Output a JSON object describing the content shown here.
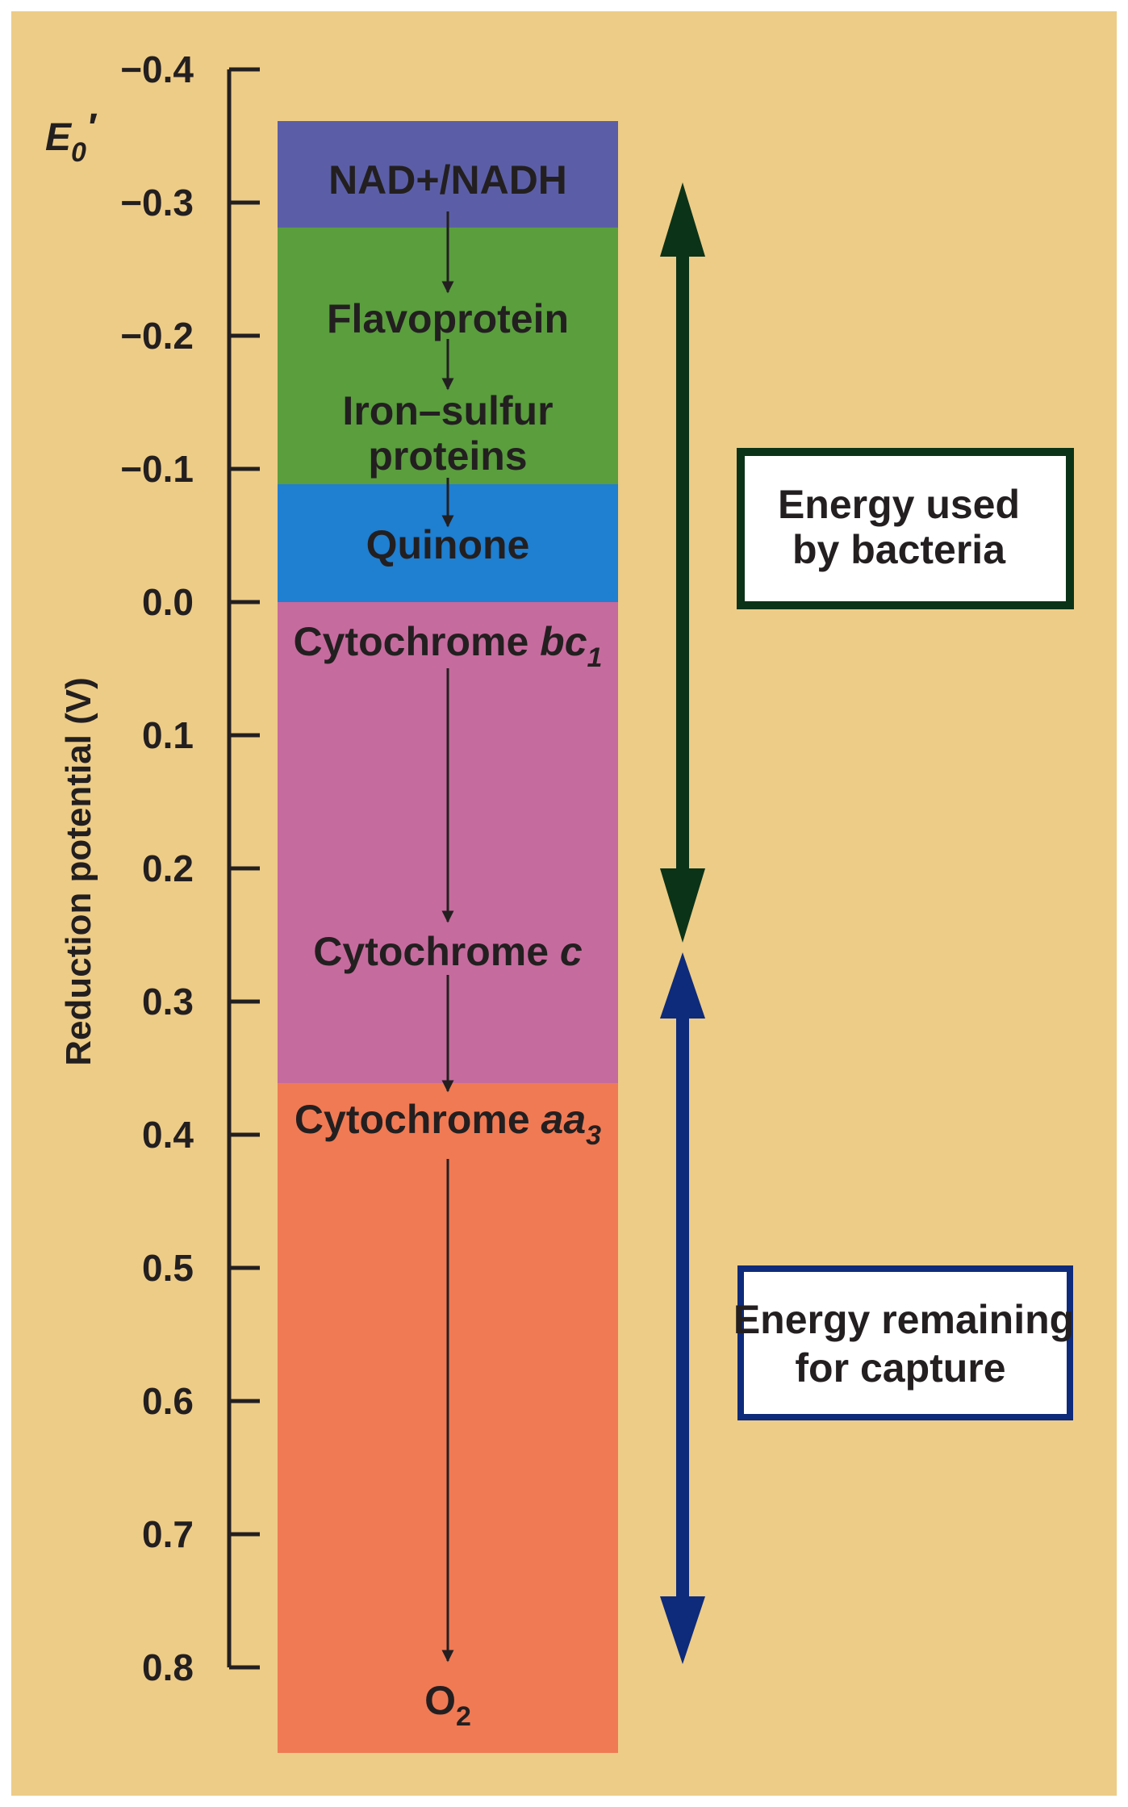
{
  "axis": {
    "symbol_main": "E",
    "symbol_sub": "0",
    "symbol_prime": "′",
    "ylabel": "Reduction potential (V)",
    "tick_labels": [
      "−0.4",
      "−0.3",
      "−0.2",
      "−0.1",
      "0.0",
      "0.1",
      "0.2",
      "0.3",
      "0.4",
      "0.5",
      "0.6",
      "0.7",
      "0.8"
    ],
    "range": [
      -0.4,
      0.8
    ]
  },
  "bands": [
    {
      "label_main": "NAD+/NADH",
      "label_italic": "",
      "label_sub": "",
      "top_v": -0.36,
      "bottom_v": -0.28,
      "color": "#5b5ea6"
    },
    {
      "label_main": "Flavoprotein",
      "label_italic": "",
      "label_sub": "",
      "top_v": -0.28,
      "bottom_v": -0.09,
      "color": "#5a9e3e"
    },
    {
      "label_main": "Iron–sulfur",
      "label_line2": "proteins",
      "top_v": -0.28,
      "bottom_v": -0.09,
      "color": "#5a9e3e"
    },
    {
      "label_main": "Quinone",
      "label_italic": "",
      "label_sub": "",
      "top_v": -0.09,
      "bottom_v": 0.0,
      "color": "#1f7fd1"
    },
    {
      "label_main": "Cytochrome ",
      "label_italic": "bc",
      "label_sub": "1",
      "top_v": 0.0,
      "bottom_v": 0.36,
      "color": "#c66b9e"
    },
    {
      "label_main": "Cytochrome ",
      "label_italic": "c",
      "label_sub": "",
      "top_v": 0.0,
      "bottom_v": 0.36,
      "color": "#c66b9e"
    },
    {
      "label_main": "Cytochrome ",
      "label_italic": "aa",
      "label_sub": "3",
      "top_v": 0.36,
      "bottom_v": 0.86,
      "color": "#f07a54"
    },
    {
      "label_main": "O",
      "label_italic": "",
      "label_sub": "2",
      "top_v": 0.36,
      "bottom_v": 0.86,
      "color": "#f07a54"
    }
  ],
  "energy_bacteria": {
    "line1": "Energy used",
    "line2": "by bacteria",
    "color": "#0b3318",
    "range_v": [
      -0.31,
      0.26
    ]
  },
  "energy_capture": {
    "line1": "Energy remaining",
    "line2": "for capture",
    "color": "#0e2a7a",
    "range_v": [
      0.26,
      0.82
    ]
  },
  "colors": {
    "background": "#edcc87",
    "outer_border": "#ffffff",
    "axis": "#231f20"
  }
}
